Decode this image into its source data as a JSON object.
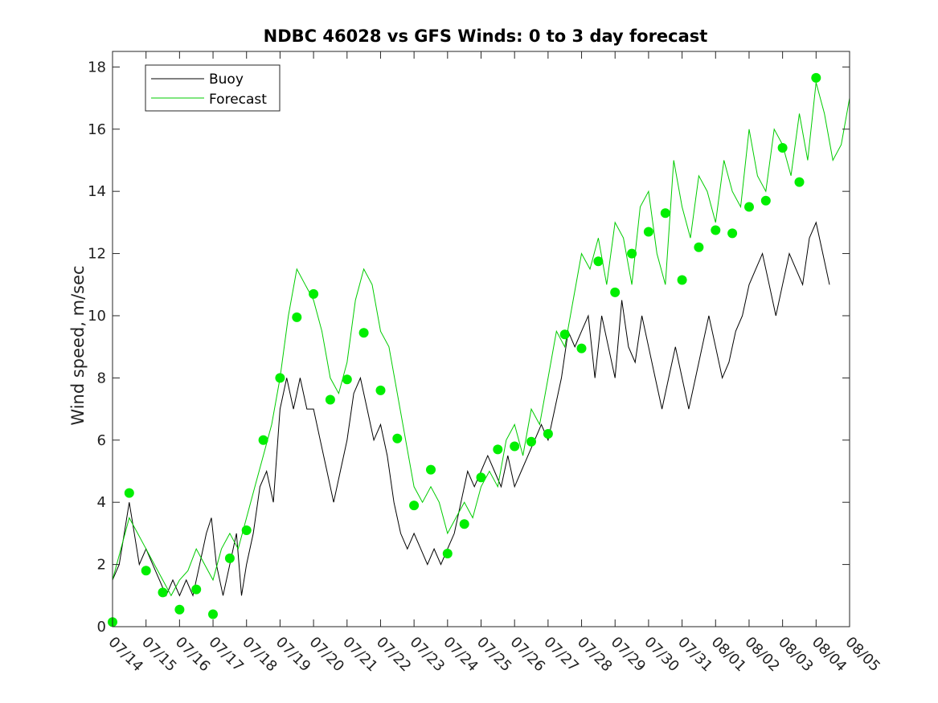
{
  "chart_data": {
    "type": "line",
    "title": "NDBC 46028 vs GFS Winds: 0 to 3 day forecast",
    "xlabel": "",
    "ylabel": "Wind speed, m/sec",
    "x_ticks": [
      "07/14",
      "07/15",
      "07/16",
      "07/17",
      "07/18",
      "07/19",
      "07/20",
      "07/21",
      "07/22",
      "07/23",
      "07/24",
      "07/25",
      "07/26",
      "07/27",
      "07/28",
      "07/29",
      "07/30",
      "07/31",
      "08/01",
      "08/02",
      "08/03",
      "08/04",
      "08/05"
    ],
    "xlim_days": [
      0,
      22
    ],
    "ylim": [
      0,
      18.5
    ],
    "y_ticks": [
      0,
      2,
      4,
      6,
      8,
      10,
      12,
      14,
      16,
      18
    ],
    "legend_position": "top-left",
    "grid": false,
    "series": [
      {
        "name": "Buoy",
        "color": "#000000",
        "style": "line",
        "points": [
          [
            0.0,
            1.5
          ],
          [
            0.2,
            2.0
          ],
          [
            0.35,
            3.0
          ],
          [
            0.5,
            4.0
          ],
          [
            0.65,
            3.0
          ],
          [
            0.8,
            2.0
          ],
          [
            1.0,
            2.5
          ],
          [
            1.2,
            2.0
          ],
          [
            1.4,
            1.5
          ],
          [
            1.6,
            1.0
          ],
          [
            1.8,
            1.5
          ],
          [
            2.0,
            1.0
          ],
          [
            2.2,
            1.5
          ],
          [
            2.4,
            1.0
          ],
          [
            2.6,
            2.0
          ],
          [
            2.8,
            3.0
          ],
          [
            2.95,
            3.5
          ],
          [
            3.1,
            2.0
          ],
          [
            3.3,
            1.0
          ],
          [
            3.5,
            2.0
          ],
          [
            3.7,
            3.0
          ],
          [
            3.85,
            1.0
          ],
          [
            4.0,
            2.0
          ],
          [
            4.2,
            3.0
          ],
          [
            4.4,
            4.5
          ],
          [
            4.6,
            5.0
          ],
          [
            4.8,
            4.0
          ],
          [
            5.0,
            7.0
          ],
          [
            5.2,
            8.0
          ],
          [
            5.4,
            7.0
          ],
          [
            5.6,
            8.0
          ],
          [
            5.8,
            7.0
          ],
          [
            6.0,
            7.0
          ],
          [
            6.2,
            6.0
          ],
          [
            6.4,
            5.0
          ],
          [
            6.6,
            4.0
          ],
          [
            6.8,
            5.0
          ],
          [
            7.0,
            6.0
          ],
          [
            7.2,
            7.5
          ],
          [
            7.4,
            8.0
          ],
          [
            7.6,
            7.0
          ],
          [
            7.8,
            6.0
          ],
          [
            8.0,
            6.5
          ],
          [
            8.2,
            5.5
          ],
          [
            8.4,
            4.0
          ],
          [
            8.6,
            3.0
          ],
          [
            8.8,
            2.5
          ],
          [
            9.0,
            3.0
          ],
          [
            9.2,
            2.5
          ],
          [
            9.4,
            2.0
          ],
          [
            9.6,
            2.5
          ],
          [
            9.8,
            2.0
          ],
          [
            10.0,
            2.5
          ],
          [
            10.2,
            3.0
          ],
          [
            10.4,
            4.0
          ],
          [
            10.6,
            5.0
          ],
          [
            10.8,
            4.5
          ],
          [
            11.0,
            5.0
          ],
          [
            11.2,
            5.5
          ],
          [
            11.4,
            5.0
          ],
          [
            11.6,
            4.5
          ],
          [
            11.8,
            5.5
          ],
          [
            12.0,
            4.5
          ],
          [
            12.2,
            5.0
          ],
          [
            12.4,
            5.5
          ],
          [
            12.6,
            6.0
          ],
          [
            12.8,
            6.5
          ],
          [
            13.0,
            6.0
          ],
          [
            13.2,
            7.0
          ],
          [
            13.4,
            8.0
          ],
          [
            13.6,
            9.5
          ],
          [
            13.8,
            9.0
          ],
          [
            14.0,
            9.5
          ],
          [
            14.2,
            10.0
          ],
          [
            14.4,
            8.0
          ],
          [
            14.6,
            10.0
          ],
          [
            14.8,
            9.0
          ],
          [
            15.0,
            8.0
          ],
          [
            15.2,
            10.5
          ],
          [
            15.4,
            9.0
          ],
          [
            15.6,
            8.5
          ],
          [
            15.8,
            10.0
          ],
          [
            16.0,
            9.0
          ],
          [
            16.2,
            8.0
          ],
          [
            16.4,
            7.0
          ],
          [
            16.6,
            8.0
          ],
          [
            16.8,
            9.0
          ],
          [
            17.0,
            8.0
          ],
          [
            17.2,
            7.0
          ],
          [
            17.4,
            8.0
          ],
          [
            17.6,
            9.0
          ],
          [
            17.8,
            10.0
          ],
          [
            18.0,
            9.0
          ],
          [
            18.2,
            8.0
          ],
          [
            18.4,
            8.5
          ],
          [
            18.6,
            9.5
          ],
          [
            18.8,
            10.0
          ],
          [
            19.0,
            11.0
          ],
          [
            19.2,
            11.5
          ],
          [
            19.4,
            12.0
          ],
          [
            19.6,
            11.0
          ],
          [
            19.8,
            10.0
          ],
          [
            20.0,
            11.0
          ],
          [
            20.2,
            12.0
          ],
          [
            20.4,
            11.5
          ],
          [
            20.6,
            11.0
          ],
          [
            20.8,
            12.5
          ],
          [
            21.0,
            13.0
          ],
          [
            21.2,
            12.0
          ],
          [
            21.4,
            11.0
          ]
        ]
      },
      {
        "name": "Forecast",
        "color": "#00cc00",
        "style": "line",
        "points": [
          [
            0.0,
            1.5
          ],
          [
            0.25,
            2.5
          ],
          [
            0.5,
            3.5
          ],
          [
            0.75,
            3.0
          ],
          [
            1.0,
            2.5
          ],
          [
            1.25,
            2.0
          ],
          [
            1.5,
            1.5
          ],
          [
            1.75,
            1.0
          ],
          [
            2.0,
            1.5
          ],
          [
            2.25,
            1.8
          ],
          [
            2.5,
            2.5
          ],
          [
            2.75,
            2.0
          ],
          [
            3.0,
            1.5
          ],
          [
            3.25,
            2.5
          ],
          [
            3.5,
            3.0
          ],
          [
            3.75,
            2.5
          ],
          [
            4.0,
            3.5
          ],
          [
            4.25,
            4.5
          ],
          [
            4.5,
            5.5
          ],
          [
            4.75,
            6.5
          ],
          [
            5.0,
            8.0
          ],
          [
            5.25,
            10.0
          ],
          [
            5.5,
            11.5
          ],
          [
            5.75,
            11.0
          ],
          [
            6.0,
            10.5
          ],
          [
            6.25,
            9.5
          ],
          [
            6.5,
            8.0
          ],
          [
            6.75,
            7.5
          ],
          [
            7.0,
            8.5
          ],
          [
            7.25,
            10.5
          ],
          [
            7.5,
            11.5
          ],
          [
            7.75,
            11.0
          ],
          [
            8.0,
            9.5
          ],
          [
            8.25,
            9.0
          ],
          [
            8.5,
            7.5
          ],
          [
            8.75,
            6.0
          ],
          [
            9.0,
            4.5
          ],
          [
            9.25,
            4.0
          ],
          [
            9.5,
            4.5
          ],
          [
            9.75,
            4.0
          ],
          [
            10.0,
            3.0
          ],
          [
            10.25,
            3.5
          ],
          [
            10.5,
            4.0
          ],
          [
            10.75,
            3.5
          ],
          [
            11.0,
            4.5
          ],
          [
            11.25,
            5.0
          ],
          [
            11.5,
            4.5
          ],
          [
            11.75,
            6.0
          ],
          [
            12.0,
            6.5
          ],
          [
            12.25,
            5.5
          ],
          [
            12.5,
            7.0
          ],
          [
            12.75,
            6.5
          ],
          [
            13.0,
            8.0
          ],
          [
            13.25,
            9.5
          ],
          [
            13.5,
            9.0
          ],
          [
            13.75,
            10.5
          ],
          [
            14.0,
            12.0
          ],
          [
            14.25,
            11.5
          ],
          [
            14.5,
            12.5
          ],
          [
            14.75,
            11.0
          ],
          [
            15.0,
            13.0
          ],
          [
            15.25,
            12.5
          ],
          [
            15.5,
            11.0
          ],
          [
            15.75,
            13.5
          ],
          [
            16.0,
            14.0
          ],
          [
            16.25,
            12.0
          ],
          [
            16.5,
            11.0
          ],
          [
            16.75,
            15.0
          ],
          [
            17.0,
            13.5
          ],
          [
            17.25,
            12.5
          ],
          [
            17.5,
            14.5
          ],
          [
            17.75,
            14.0
          ],
          [
            18.0,
            13.0
          ],
          [
            18.25,
            15.0
          ],
          [
            18.5,
            14.0
          ],
          [
            18.75,
            13.5
          ],
          [
            19.0,
            16.0
          ],
          [
            19.25,
            14.5
          ],
          [
            19.5,
            14.0
          ],
          [
            19.75,
            16.0
          ],
          [
            20.0,
            15.5
          ],
          [
            20.25,
            14.5
          ],
          [
            20.5,
            16.5
          ],
          [
            20.75,
            15.0
          ],
          [
            21.0,
            17.5
          ],
          [
            21.25,
            16.5
          ],
          [
            21.5,
            15.0
          ],
          [
            21.75,
            15.5
          ],
          [
            22.0,
            17.0
          ]
        ]
      },
      {
        "name": "",
        "color": "#00ee00",
        "style": "markers",
        "points": [
          [
            0.0,
            0.15
          ],
          [
            0.5,
            4.3
          ],
          [
            1.0,
            1.8
          ],
          [
            1.5,
            1.1
          ],
          [
            2.0,
            0.55
          ],
          [
            2.5,
            1.2
          ],
          [
            3.0,
            0.4
          ],
          [
            3.5,
            2.2
          ],
          [
            4.0,
            3.1
          ],
          [
            4.5,
            6.0
          ],
          [
            5.0,
            8.0
          ],
          [
            5.5,
            9.95
          ],
          [
            6.0,
            10.7
          ],
          [
            6.5,
            7.3
          ],
          [
            7.0,
            7.95
          ],
          [
            7.5,
            9.45
          ],
          [
            8.0,
            7.6
          ],
          [
            8.5,
            6.05
          ],
          [
            9.0,
            3.9
          ],
          [
            9.5,
            5.05
          ],
          [
            10.0,
            2.35
          ],
          [
            10.5,
            3.3
          ],
          [
            11.0,
            4.8
          ],
          [
            11.5,
            5.7
          ],
          [
            12.0,
            5.8
          ],
          [
            12.5,
            5.95
          ],
          [
            13.0,
            6.2
          ],
          [
            13.5,
            9.4
          ],
          [
            14.0,
            8.95
          ],
          [
            14.5,
            11.75
          ],
          [
            15.0,
            10.75
          ],
          [
            15.5,
            12.0
          ],
          [
            16.0,
            12.7
          ],
          [
            16.5,
            13.3
          ],
          [
            17.0,
            11.15
          ],
          [
            17.5,
            12.2
          ],
          [
            18.0,
            12.75
          ],
          [
            18.5,
            12.65
          ],
          [
            19.0,
            13.5
          ],
          [
            19.5,
            13.7
          ],
          [
            20.0,
            15.4
          ],
          [
            20.5,
            14.3
          ],
          [
            21.0,
            17.65
          ]
        ]
      }
    ]
  }
}
